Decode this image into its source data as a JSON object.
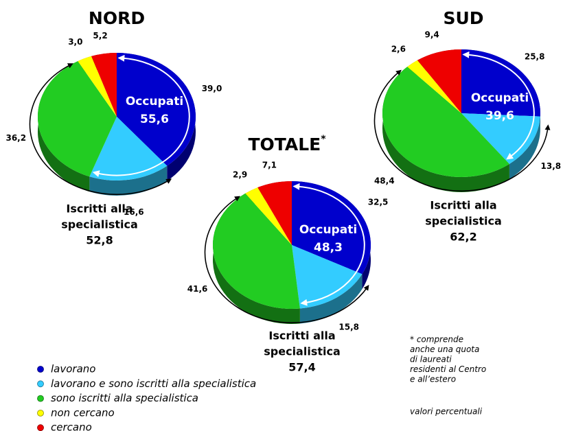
{
  "legend": {
    "labels": [
      "lavorano",
      "lavorano e sono iscritti alla specialistica",
      "sono iscritti alla specialistica",
      "non cercano",
      "cercano"
    ],
    "colors": [
      "#0000cc",
      "#33ccff",
      "#22cc22",
      "#ffff00",
      "#ee0000"
    ]
  },
  "chart_data": [
    {
      "type": "pie",
      "title": "NORD",
      "values": [
        39.0,
        16.6,
        36.2,
        3.0,
        5.2
      ],
      "value_labels": [
        "39,0",
        "16,6",
        "36,2",
        "3,0",
        "5,2"
      ],
      "occupati_label": "Occupati",
      "occupati_value": "55,6",
      "iscritti_label": [
        "Iscritti alla",
        "specialistica"
      ],
      "iscritti_value": "52,8"
    },
    {
      "type": "pie",
      "title": "SUD",
      "values": [
        25.8,
        13.8,
        48.4,
        2.6,
        9.4
      ],
      "value_labels": [
        "25,8",
        "13,8",
        "48,4",
        "2,6",
        "9,4"
      ],
      "occupati_label": "Occupati",
      "occupati_value": "39,6",
      "iscritti_label": [
        "Iscritti alla",
        "specialistica"
      ],
      "iscritti_value": "62,2"
    },
    {
      "type": "pie",
      "title": "TOTALE",
      "title_mark": "*",
      "values": [
        32.5,
        15.8,
        41.6,
        2.9,
        7.1
      ],
      "value_labels": [
        "32,5",
        "15,8",
        "41,6",
        "2,9",
        "7,1"
      ],
      "occupati_label": "Occupati",
      "occupati_value": "48,3",
      "iscritti_label": [
        "Iscritti alla",
        "specialistica"
      ],
      "iscritti_value": "57,4"
    }
  ],
  "note": [
    "* comprende",
    "anche una quota",
    "di laureati",
    "residenti al Centro",
    "e all’estero"
  ],
  "units_note": "valori percentuali"
}
